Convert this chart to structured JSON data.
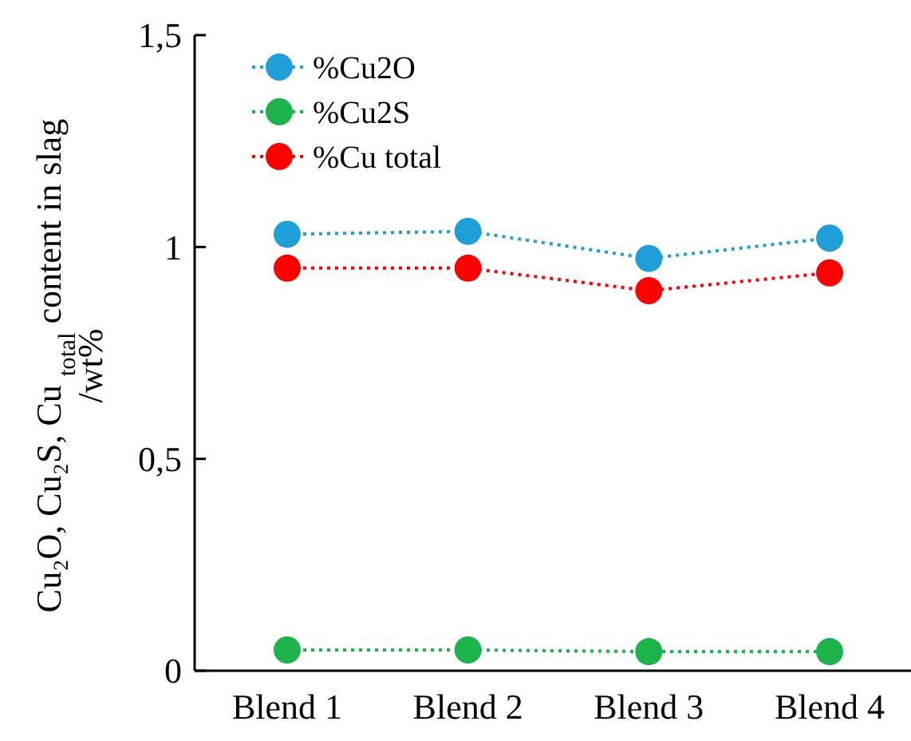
{
  "chart_data": {
    "type": "line",
    "ylabel": "Cu₂O, Cu₂S, Cu $_{total}$ content in slag\n/wt%",
    "categories": [
      "Blend 1",
      "Blend 2",
      "Blend 3",
      "Blend 4"
    ],
    "series": [
      {
        "name": "%Cu2O",
        "color": "#1f9fd8",
        "values": [
          1.03,
          1.037,
          0.973,
          1.021
        ]
      },
      {
        "name": "%Cu2S",
        "color": "#1db34b",
        "values": [
          0.049,
          0.049,
          0.045,
          0.045
        ]
      },
      {
        "name": "%Cu total",
        "color": "#ff0000",
        "values": [
          0.95,
          0.95,
          0.897,
          0.939
        ]
      }
    ],
    "ylim": [
      0,
      1.5
    ],
    "yticks": [
      0,
      {
        "value": 0.5,
        "label": "0,5"
      },
      1,
      {
        "value": 1.5,
        "label": "1,5"
      }
    ],
    "legend": "top left",
    "marker": "circle",
    "line_style": "dotted",
    "grid": false
  }
}
